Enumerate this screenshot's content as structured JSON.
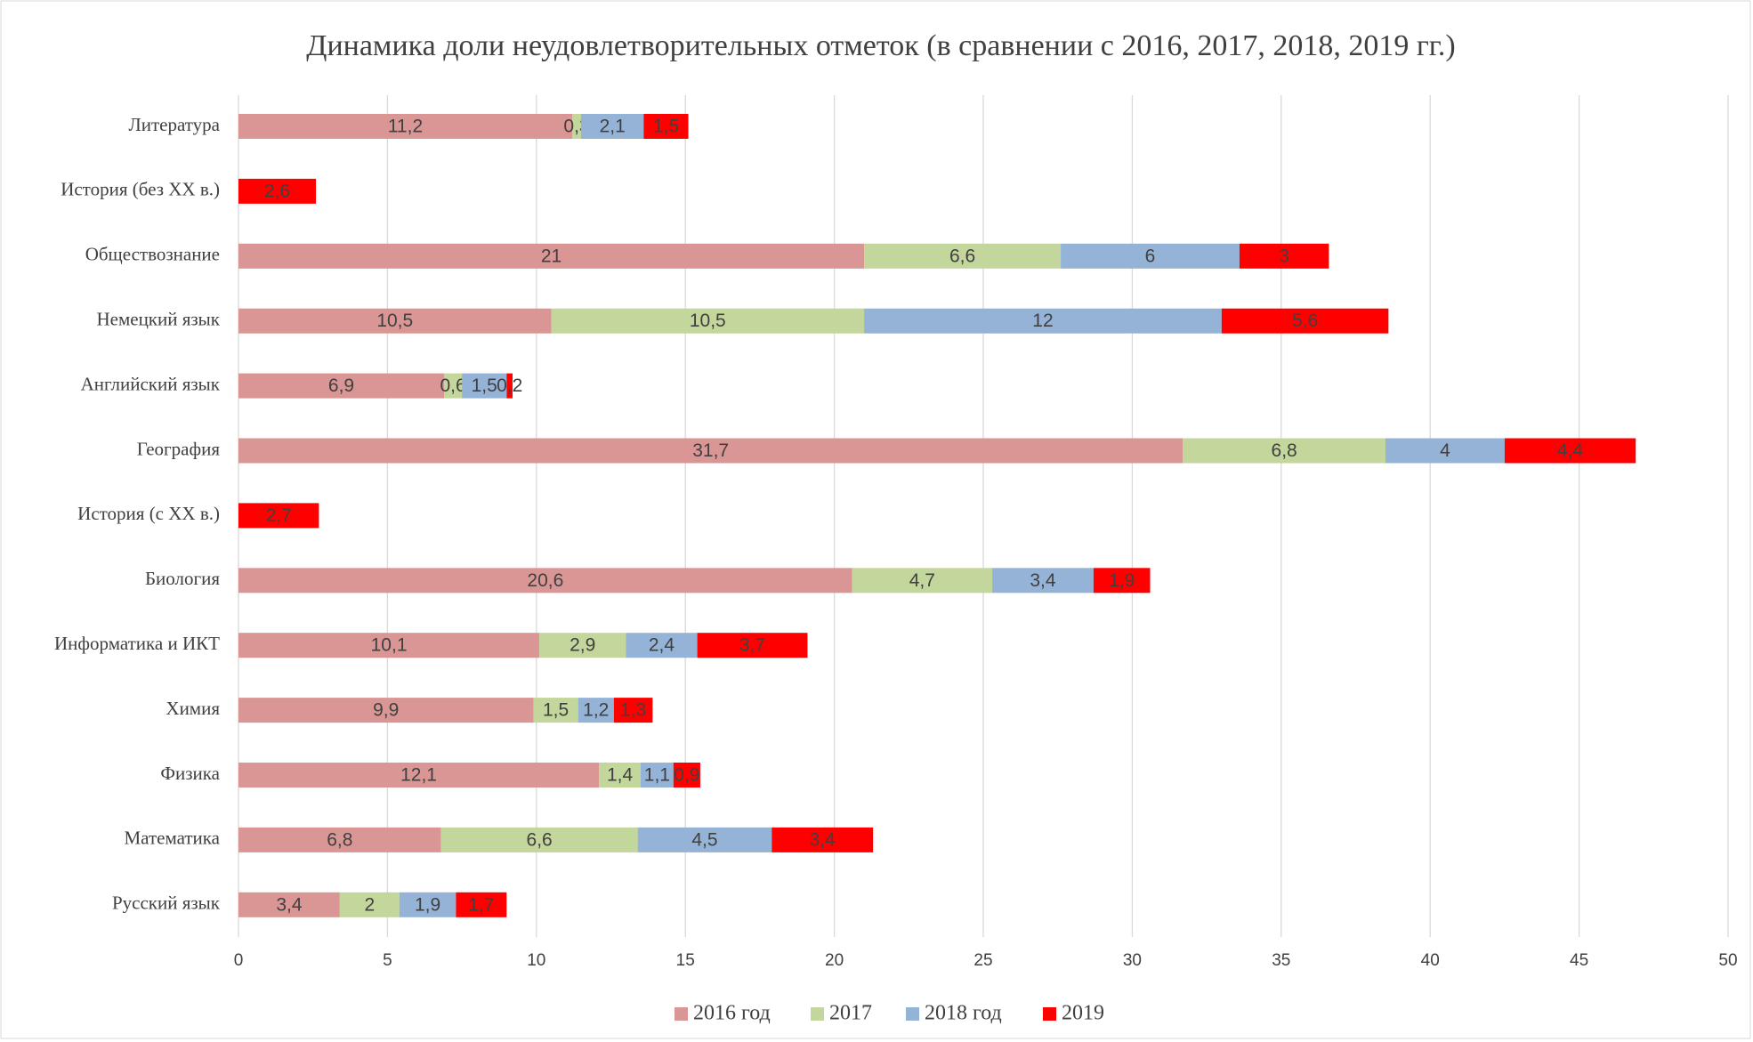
{
  "chart_data": {
    "type": "stacked_barh",
    "title": "Динамика доли неудовлетворительных отметок (в сравнении с 2016, 2017, 2018, 2019 гг.)",
    "categories": [
      "Литература",
      "История (без XX в.)",
      "Обществознание",
      "Немецкий язык",
      "Английский язык",
      "География",
      "История (с XX в.)",
      "Биология",
      "Информатика и ИКТ",
      "Химия",
      "Физика",
      "Математика",
      "Русский язык"
    ],
    "series": [
      {
        "name": "2016 год",
        "color": "#d99694",
        "values": [
          11.2,
          null,
          21,
          10.5,
          6.9,
          31.7,
          null,
          20.6,
          10.1,
          9.9,
          12.1,
          6.8,
          3.4
        ],
        "value_labels": [
          "11,2",
          null,
          "21",
          "10,5",
          "6,9",
          "31,7",
          null,
          "20,6",
          "10,1",
          "9,9",
          "12,1",
          "6,8",
          "3,4"
        ]
      },
      {
        "name": "2017",
        "color": "#c3d69b",
        "values": [
          0.3,
          null,
          6.6,
          10.5,
          0.6,
          6.8,
          null,
          4.7,
          2.9,
          1.5,
          1.4,
          6.6,
          2
        ],
        "value_labels": [
          "0,3",
          null,
          "6,6",
          "10,5",
          "0,6",
          "6,8",
          null,
          "4,7",
          "2,9",
          "1,5",
          "1,4",
          "6,6",
          "2"
        ]
      },
      {
        "name": "2018 год",
        "color": "#95b3d7",
        "values": [
          2.1,
          null,
          6,
          12,
          1.5,
          4,
          null,
          3.4,
          2.4,
          1.2,
          1.1,
          4.5,
          1.9
        ],
        "value_labels": [
          "2,1",
          null,
          "6",
          "12",
          "1,5",
          "4",
          null,
          "3,4",
          "2,4",
          "1,2",
          "1,1",
          "4,5",
          "1,9"
        ]
      },
      {
        "name": "2019",
        "color": "#ff0000",
        "values": [
          1.5,
          2.6,
          3,
          5.6,
          0.2,
          4.4,
          2.7,
          1.9,
          3.7,
          1.3,
          0.9,
          3.4,
          1.7
        ],
        "value_labels": [
          "1,5",
          "2,6",
          "3",
          "5,6",
          "0,2",
          "4,4",
          "2,7",
          "1,9",
          "3,7",
          "1,3",
          "0,9",
          "3,4",
          "1,7"
        ]
      }
    ],
    "xlim": [
      0,
      50
    ],
    "xticks": [
      0,
      5,
      10,
      15,
      20,
      25,
      30,
      35,
      40,
      45,
      50
    ],
    "grid": true,
    "legend": "bottom"
  }
}
